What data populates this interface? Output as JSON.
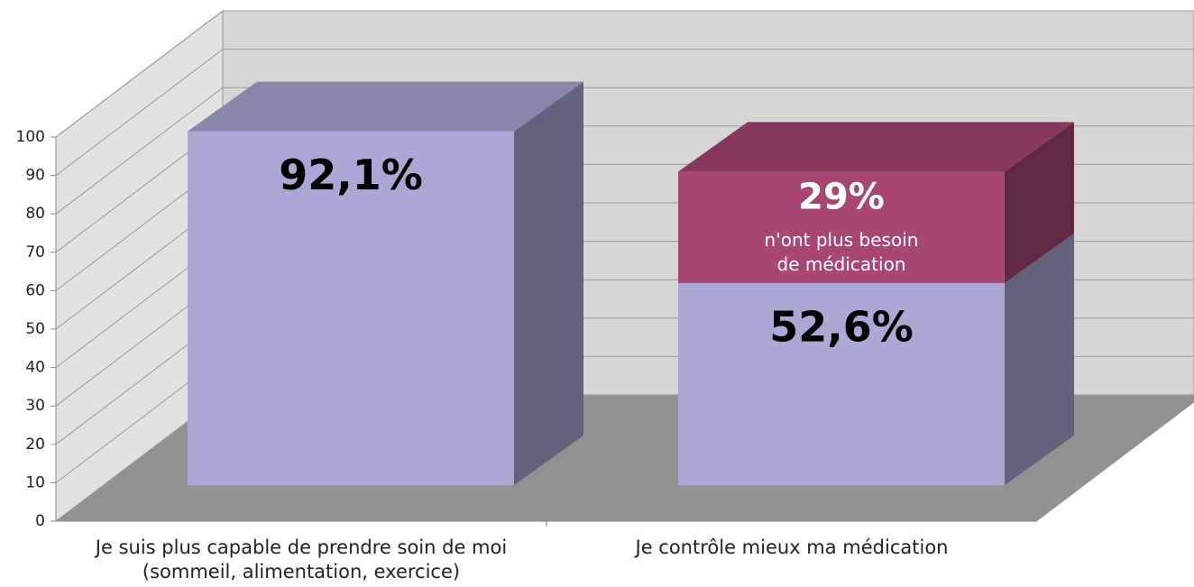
{
  "chart_data": {
    "type": "bar3d_stacked",
    "categories": [
      [
        "Je suis plus capable de prendre soin de moi",
        "(sommeil, alimentation, exercice)"
      ],
      [
        "Je contrôle mieux ma médication"
      ]
    ],
    "series": [
      {
        "color": "#aaa8d4",
        "values": [
          92.1,
          52.6
        ],
        "value_labels": [
          "92,1%",
          "52,6%"
        ]
      },
      {
        "color": "#a84674",
        "values": [
          null,
          29
        ],
        "value_labels": [
          null,
          "29%"
        ],
        "annotation": [
          "n'ont plus besoin",
          "de médication"
        ]
      }
    ],
    "ylim": [
      0,
      100
    ],
    "yticks": [
      0,
      10,
      20,
      30,
      40,
      50,
      60,
      70,
      80,
      90,
      100
    ],
    "grid": true
  }
}
